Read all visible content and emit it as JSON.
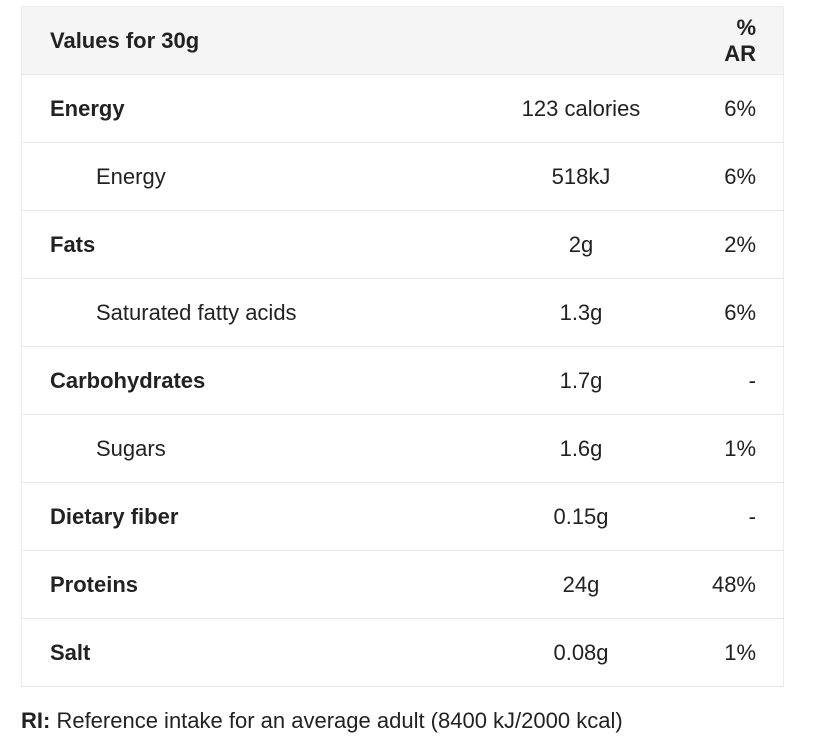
{
  "header": {
    "label": "Values for 30g",
    "value": "",
    "ar": "% AR"
  },
  "rows": [
    {
      "label": "Energy",
      "value": "123 calories",
      "ar": "6%",
      "sub": false
    },
    {
      "label": "Energy",
      "value": "518kJ",
      "ar": "6%",
      "sub": true
    },
    {
      "label": "Fats",
      "value": "2g",
      "ar": "2%",
      "sub": false
    },
    {
      "label": "Saturated fatty acids",
      "value": "1.3g",
      "ar": "6%",
      "sub": true
    },
    {
      "label": "Carbohydrates",
      "value": "1.7g",
      "ar": "-",
      "sub": false
    },
    {
      "label": "Sugars",
      "value": "1.6g",
      "ar": "1%",
      "sub": true
    },
    {
      "label": "Dietary fiber",
      "value": "0.15g",
      "ar": "-",
      "sub": false
    },
    {
      "label": "Proteins",
      "value": "24g",
      "ar": "48%",
      "sub": false
    },
    {
      "label": "Salt",
      "value": "0.08g",
      "ar": "1%",
      "sub": false
    }
  ],
  "footnote": {
    "term": "RI:",
    "text": " Reference intake for an average adult (8400 kJ/2000 kcal)"
  }
}
